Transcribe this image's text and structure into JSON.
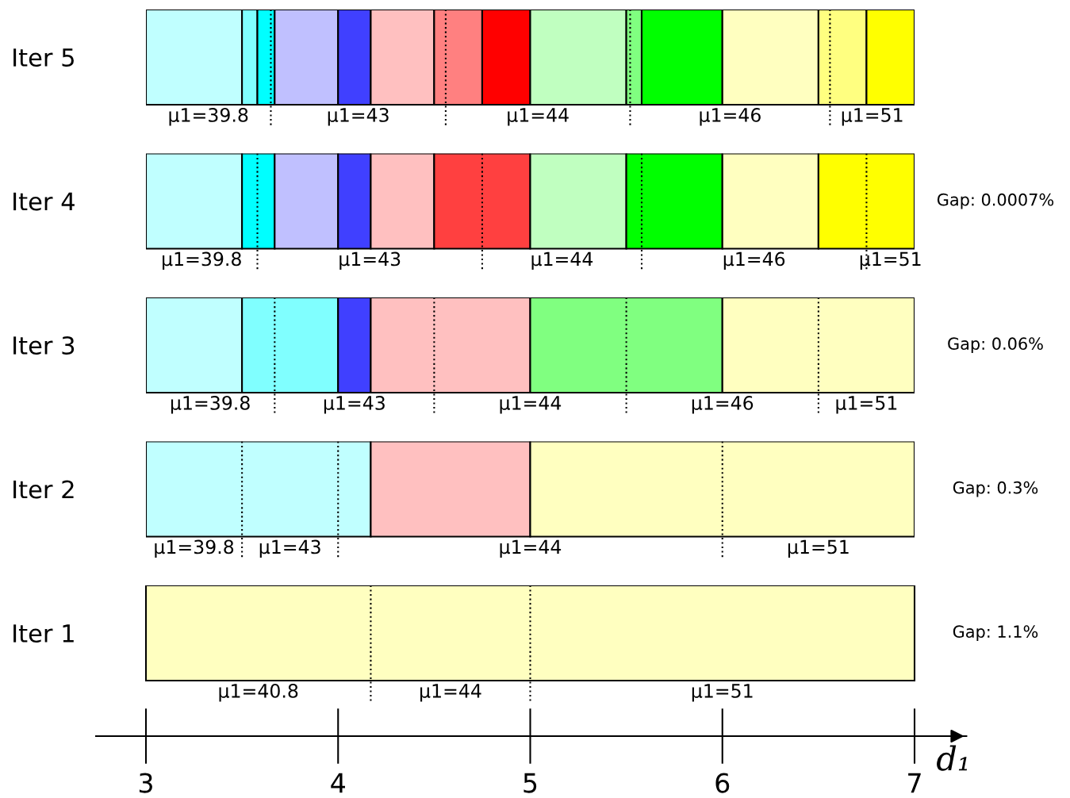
{
  "chart_data": [
    {
      "type": "bar",
      "orientation": "horizontal",
      "categories": [
        "Iter 5"
      ],
      "xlim": [
        3,
        7
      ],
      "xticks": [
        3,
        4,
        5,
        6,
        7
      ],
      "tick_labels": "y",
      "series": [
        {
          "values": [
            0.5
          ],
          "base": [
            3
          ],
          "color": "#c0ffff"
        },
        {
          "values": [
            0.08
          ],
          "base": [
            3.5
          ],
          "color": "#80ffff"
        },
        {
          "values": [
            0.09
          ],
          "base": [
            3.58
          ],
          "color": "#00ffff"
        },
        {
          "values": [
            0.33
          ],
          "base": [
            3.67
          ],
          "color": "#c0c0ff"
        },
        {
          "values": [
            0.17
          ],
          "base": [
            4
          ],
          "color": "#4040ff"
        },
        {
          "values": [
            0.33
          ],
          "base": [
            4.17
          ],
          "color": "#ffc0c0"
        },
        {
          "values": [
            0.25
          ],
          "base": [
            4.5
          ],
          "color": "#ff8080"
        },
        {
          "values": [
            0.25
          ],
          "base": [
            4.75
          ],
          "color": "#ff0000"
        },
        {
          "values": [
            0.5
          ],
          "base": [
            5
          ],
          "color": "#c0ffc0"
        },
        {
          "values": [
            0.08
          ],
          "base": [
            5.5
          ],
          "color": "#80ff80"
        },
        {
          "values": [
            0.42
          ],
          "base": [
            5.58
          ],
          "color": "#00ff00"
        },
        {
          "values": [
            0.5
          ],
          "base": [
            6
          ],
          "color": "#ffffc0"
        },
        {
          "values": [
            0.25
          ],
          "base": [
            6.5
          ],
          "color": "#ffff80"
        },
        {
          "values": [
            0.25
          ],
          "base": [
            6.75
          ],
          "color": "#ffff00"
        }
      ],
      "ref_lines": [
        {
          "axis": "x",
          "value": 3.65,
          "line_style": "dotted"
        },
        {
          "axis": "x",
          "value": 4.56,
          "line_style": "dotted"
        },
        {
          "axis": "x",
          "value": 5.52,
          "line_style": "dotted"
        },
        {
          "axis": "x",
          "value": 6.56,
          "line_style": "dotted"
        }
      ],
      "annotations": [
        "μ1=39.8",
        "μ1=43",
        "μ1=44",
        "μ1=46",
        "μ1=51"
      ]
    },
    {
      "type": "bar",
      "orientation": "horizontal",
      "categories": [
        "Iter 4"
      ],
      "xlim": [
        3,
        7
      ],
      "xticks": [
        3,
        4,
        5,
        6,
        7
      ],
      "tick_labels": "y",
      "y2label": "Gap: 0.0007%",
      "series": [
        {
          "values": [
            0.5
          ],
          "base": [
            3
          ],
          "color": "#c0ffff"
        },
        {
          "values": [
            0.17
          ],
          "base": [
            3.5
          ],
          "color": "#00ffff"
        },
        {
          "values": [
            0.33
          ],
          "base": [
            3.67
          ],
          "color": "#c0c0ff"
        },
        {
          "values": [
            0.17
          ],
          "base": [
            4
          ],
          "color": "#4040ff"
        },
        {
          "values": [
            0.33
          ],
          "base": [
            4.17
          ],
          "color": "#ffc0c0"
        },
        {
          "values": [
            0.5
          ],
          "base": [
            4.5
          ],
          "color": "#ff4040"
        },
        {
          "values": [
            0.5
          ],
          "base": [
            5
          ],
          "color": "#c0ffc0"
        },
        {
          "values": [
            0.5
          ],
          "base": [
            5.5
          ],
          "color": "#00ff00"
        },
        {
          "values": [
            0.5
          ],
          "base": [
            6
          ],
          "color": "#ffffc0"
        },
        {
          "values": [
            0.5
          ],
          "base": [
            6.5
          ],
          "color": "#ffff00"
        }
      ],
      "ref_lines": [
        {
          "axis": "x",
          "value": 3.58,
          "line_style": "dotted"
        },
        {
          "axis": "x",
          "value": 4.75,
          "line_style": "dotted"
        },
        {
          "axis": "x",
          "value": 5.58,
          "line_style": "dotted"
        },
        {
          "axis": "x",
          "value": 6.75,
          "line_style": "dotted"
        }
      ],
      "annotations": [
        "μ1=39.8",
        "μ1=43",
        "μ1=44",
        "μ1=46",
        "μ1=51"
      ]
    },
    {
      "type": "bar",
      "orientation": "horizontal",
      "categories": [
        "Iter 3"
      ],
      "xlim": [
        3,
        7
      ],
      "xticks": [
        3,
        4,
        5,
        6,
        7
      ],
      "tick_labels": "y",
      "y2label": "Gap: 0.06%",
      "series": [
        {
          "values": [
            0.5
          ],
          "base": [
            3
          ],
          "color": "#c0ffff"
        },
        {
          "values": [
            0.5
          ],
          "base": [
            3.5
          ],
          "color": "#80ffff"
        },
        {
          "values": [
            0.17
          ],
          "base": [
            4
          ],
          "color": "#4040ff"
        },
        {
          "values": [
            0.83
          ],
          "base": [
            4.17
          ],
          "color": "#ffc0c0"
        },
        {
          "values": [
            1
          ],
          "base": [
            5
          ],
          "color": "#80ff80"
        },
        {
          "values": [
            1
          ],
          "base": [
            6
          ],
          "color": "#ffffc0"
        }
      ],
      "ref_lines": [
        {
          "axis": "x",
          "value": 3.67,
          "line_style": "dotted"
        },
        {
          "axis": "x",
          "value": 4.5,
          "line_style": "dotted"
        },
        {
          "axis": "x",
          "value": 5.5,
          "line_style": "dotted"
        },
        {
          "axis": "x",
          "value": 6.5,
          "line_style": "dotted"
        }
      ],
      "annotations": [
        "μ1=39.8",
        "μ1=43",
        "μ1=44",
        "μ1=46",
        "μ1=51"
      ]
    },
    {
      "type": "bar",
      "orientation": "horizontal",
      "categories": [
        "Iter 2"
      ],
      "xlim": [
        3,
        7
      ],
      "xticks": [
        3,
        4,
        5,
        6,
        7
      ],
      "tick_labels": "y",
      "y2label": "Gap: 0.3%",
      "series": [
        {
          "values": [
            1.17
          ],
          "base": [
            3
          ],
          "color": "#c0ffff"
        },
        {
          "values": [
            0.83
          ],
          "base": [
            4.17
          ],
          "color": "#ffc0c0"
        },
        {
          "values": [
            2
          ],
          "base": [
            5
          ],
          "color": "#ffffc0"
        }
      ],
      "ref_lines": [
        {
          "axis": "x",
          "value": 3.5,
          "line_style": "dotted"
        },
        {
          "axis": "x",
          "value": 4.0,
          "line_style": "dotted"
        },
        {
          "axis": "x",
          "value": 6.0,
          "line_style": "dotted"
        }
      ],
      "annotations": [
        "μ1=39.8",
        "μ1=43",
        "μ1=44",
        "μ1=51"
      ]
    },
    {
      "type": "bar",
      "orientation": "horizontal",
      "categories": [
        "Iter 1"
      ],
      "xlim": [
        2.74,
        7.27
      ],
      "xticks": [
        3,
        4,
        5,
        6,
        7
      ],
      "xlabel": "d₁",
      "y2label": "Gap: 1.1%",
      "series": [
        {
          "values": [
            4
          ],
          "base": [
            3
          ],
          "color": "#ffffc0"
        }
      ],
      "ref_lines": [
        {
          "axis": "x",
          "value": 4.17,
          "line_style": "dotted"
        },
        {
          "axis": "x",
          "value": 5.0,
          "line_style": "dotted"
        }
      ],
      "annotations": [
        "μ1=40.8",
        "μ1=44",
        "μ1=51"
      ]
    }
  ]
}
